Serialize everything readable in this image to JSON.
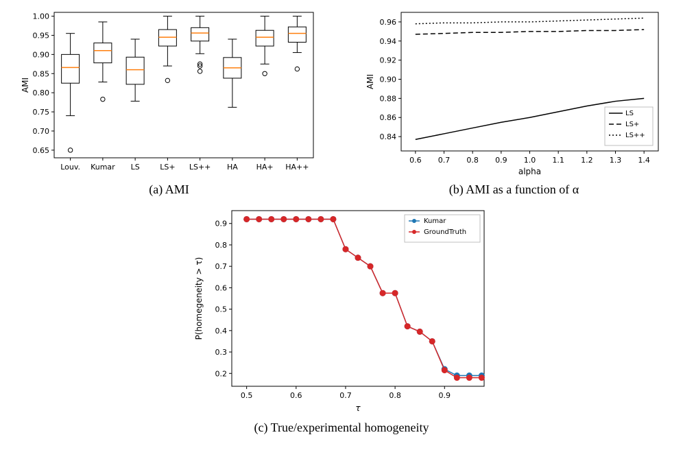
{
  "panel_a": {
    "caption": "(a) AMI",
    "ylabel": "AMI",
    "ylim": [
      0.63,
      1.01
    ],
    "yticks": [
      0.65,
      0.7,
      0.75,
      0.8,
      0.85,
      0.9,
      0.95,
      1.0
    ],
    "categories": [
      "Louv.",
      "Kumar",
      "LS",
      "LS+",
      "LS++",
      "HA",
      "HA+",
      "HA++"
    ],
    "boxes": [
      {
        "median": 0.866,
        "q1": 0.825,
        "q3": 0.9,
        "lo": 0.74,
        "hi": 0.955,
        "outliers": [
          0.65
        ]
      },
      {
        "median": 0.91,
        "q1": 0.878,
        "q3": 0.93,
        "lo": 0.828,
        "hi": 0.985,
        "outliers": [
          0.783
        ]
      },
      {
        "median": 0.86,
        "q1": 0.822,
        "q3": 0.893,
        "lo": 0.778,
        "hi": 0.94,
        "outliers": []
      },
      {
        "median": 0.945,
        "q1": 0.922,
        "q3": 0.965,
        "lo": 0.87,
        "hi": 1.0,
        "outliers": [
          0.832
        ]
      },
      {
        "median": 0.956,
        "q1": 0.935,
        "q3": 0.97,
        "lo": 0.902,
        "hi": 1.0,
        "outliers": [
          0.875,
          0.87,
          0.856
        ]
      },
      {
        "median": 0.865,
        "q1": 0.838,
        "q3": 0.892,
        "lo": 0.762,
        "hi": 0.94,
        "outliers": []
      },
      {
        "median": 0.945,
        "q1": 0.922,
        "q3": 0.963,
        "lo": 0.875,
        "hi": 1.0,
        "outliers": [
          0.85
        ]
      },
      {
        "median": 0.955,
        "q1": 0.932,
        "q3": 0.972,
        "lo": 0.905,
        "hi": 1.0,
        "outliers": [
          0.862
        ]
      }
    ],
    "box_fill": "#ffffff",
    "box_edge": "#000000",
    "median_color": "#ff7f0e",
    "tick_fontsize": 11,
    "label_fontsize": 12
  },
  "panel_b": {
    "caption": "(b) AMI as a function of α",
    "ylabel": "AMI",
    "xlabel": "alpha",
    "xlim": [
      0.55,
      1.45
    ],
    "ylim": [
      0.825,
      0.97
    ],
    "xticks": [
      0.6,
      0.7,
      0.8,
      0.9,
      1.0,
      1.1,
      1.2,
      1.3,
      1.4
    ],
    "yticks": [
      0.84,
      0.86,
      0.88,
      0.9,
      0.92,
      0.94,
      0.96
    ],
    "series": [
      {
        "label": "LS",
        "dash": "solid",
        "points": [
          [
            0.6,
            0.837
          ],
          [
            0.7,
            0.843
          ],
          [
            0.8,
            0.849
          ],
          [
            0.9,
            0.855
          ],
          [
            1.0,
            0.86
          ],
          [
            1.1,
            0.866
          ],
          [
            1.2,
            0.872
          ],
          [
            1.3,
            0.877
          ],
          [
            1.4,
            0.88
          ]
        ]
      },
      {
        "label": "LS+",
        "dash": "dashed",
        "points": [
          [
            0.6,
            0.947
          ],
          [
            0.7,
            0.948
          ],
          [
            0.8,
            0.949
          ],
          [
            0.9,
            0.949
          ],
          [
            1.0,
            0.95
          ],
          [
            1.1,
            0.95
          ],
          [
            1.2,
            0.951
          ],
          [
            1.3,
            0.951
          ],
          [
            1.4,
            0.952
          ]
        ]
      },
      {
        "label": "LS++",
        "dash": "dotted",
        "points": [
          [
            0.6,
            0.958
          ],
          [
            0.7,
            0.959
          ],
          [
            0.8,
            0.959
          ],
          [
            0.9,
            0.96
          ],
          [
            1.0,
            0.96
          ],
          [
            1.1,
            0.961
          ],
          [
            1.2,
            0.962
          ],
          [
            1.3,
            0.963
          ],
          [
            1.4,
            0.964
          ]
        ]
      }
    ],
    "line_color": "#000000",
    "tick_fontsize": 11,
    "label_fontsize": 12
  },
  "panel_c": {
    "caption": "(c) True/experimental homogeneity",
    "ylabel": "P(homegeneity > τ)",
    "xlabel": "τ",
    "xlim": [
      0.47,
      0.98
    ],
    "ylim": [
      0.14,
      0.96
    ],
    "xticks": [
      0.5,
      0.6,
      0.7,
      0.8,
      0.9
    ],
    "yticks": [
      0.2,
      0.3,
      0.4,
      0.5,
      0.6,
      0.7,
      0.8,
      0.9
    ],
    "series": [
      {
        "label": "Kumar",
        "color": "#1f77b4",
        "points": [
          [
            0.5,
            0.92
          ],
          [
            0.525,
            0.92
          ],
          [
            0.55,
            0.92
          ],
          [
            0.575,
            0.92
          ],
          [
            0.6,
            0.92
          ],
          [
            0.625,
            0.92
          ],
          [
            0.65,
            0.92
          ],
          [
            0.675,
            0.92
          ],
          [
            0.7,
            0.78
          ],
          [
            0.725,
            0.74
          ],
          [
            0.75,
            0.7
          ],
          [
            0.775,
            0.575
          ],
          [
            0.8,
            0.575
          ],
          [
            0.825,
            0.42
          ],
          [
            0.85,
            0.395
          ],
          [
            0.875,
            0.35
          ],
          [
            0.9,
            0.22
          ],
          [
            0.925,
            0.19
          ],
          [
            0.95,
            0.19
          ],
          [
            0.975,
            0.19
          ]
        ]
      },
      {
        "label": "GroundTruth",
        "color": "#d62728",
        "points": [
          [
            0.5,
            0.92
          ],
          [
            0.525,
            0.92
          ],
          [
            0.55,
            0.92
          ],
          [
            0.575,
            0.92
          ],
          [
            0.6,
            0.92
          ],
          [
            0.625,
            0.92
          ],
          [
            0.65,
            0.92
          ],
          [
            0.675,
            0.92
          ],
          [
            0.7,
            0.78
          ],
          [
            0.725,
            0.74
          ],
          [
            0.75,
            0.7
          ],
          [
            0.775,
            0.575
          ],
          [
            0.8,
            0.575
          ],
          [
            0.825,
            0.42
          ],
          [
            0.85,
            0.395
          ],
          [
            0.875,
            0.35
          ],
          [
            0.9,
            0.215
          ],
          [
            0.925,
            0.18
          ],
          [
            0.95,
            0.18
          ],
          [
            0.975,
            0.18
          ]
        ]
      }
    ],
    "marker_radius": 4,
    "tick_fontsize": 11,
    "label_fontsize": 12
  },
  "colors": {
    "axis": "#000000",
    "bg": "#ffffff"
  }
}
